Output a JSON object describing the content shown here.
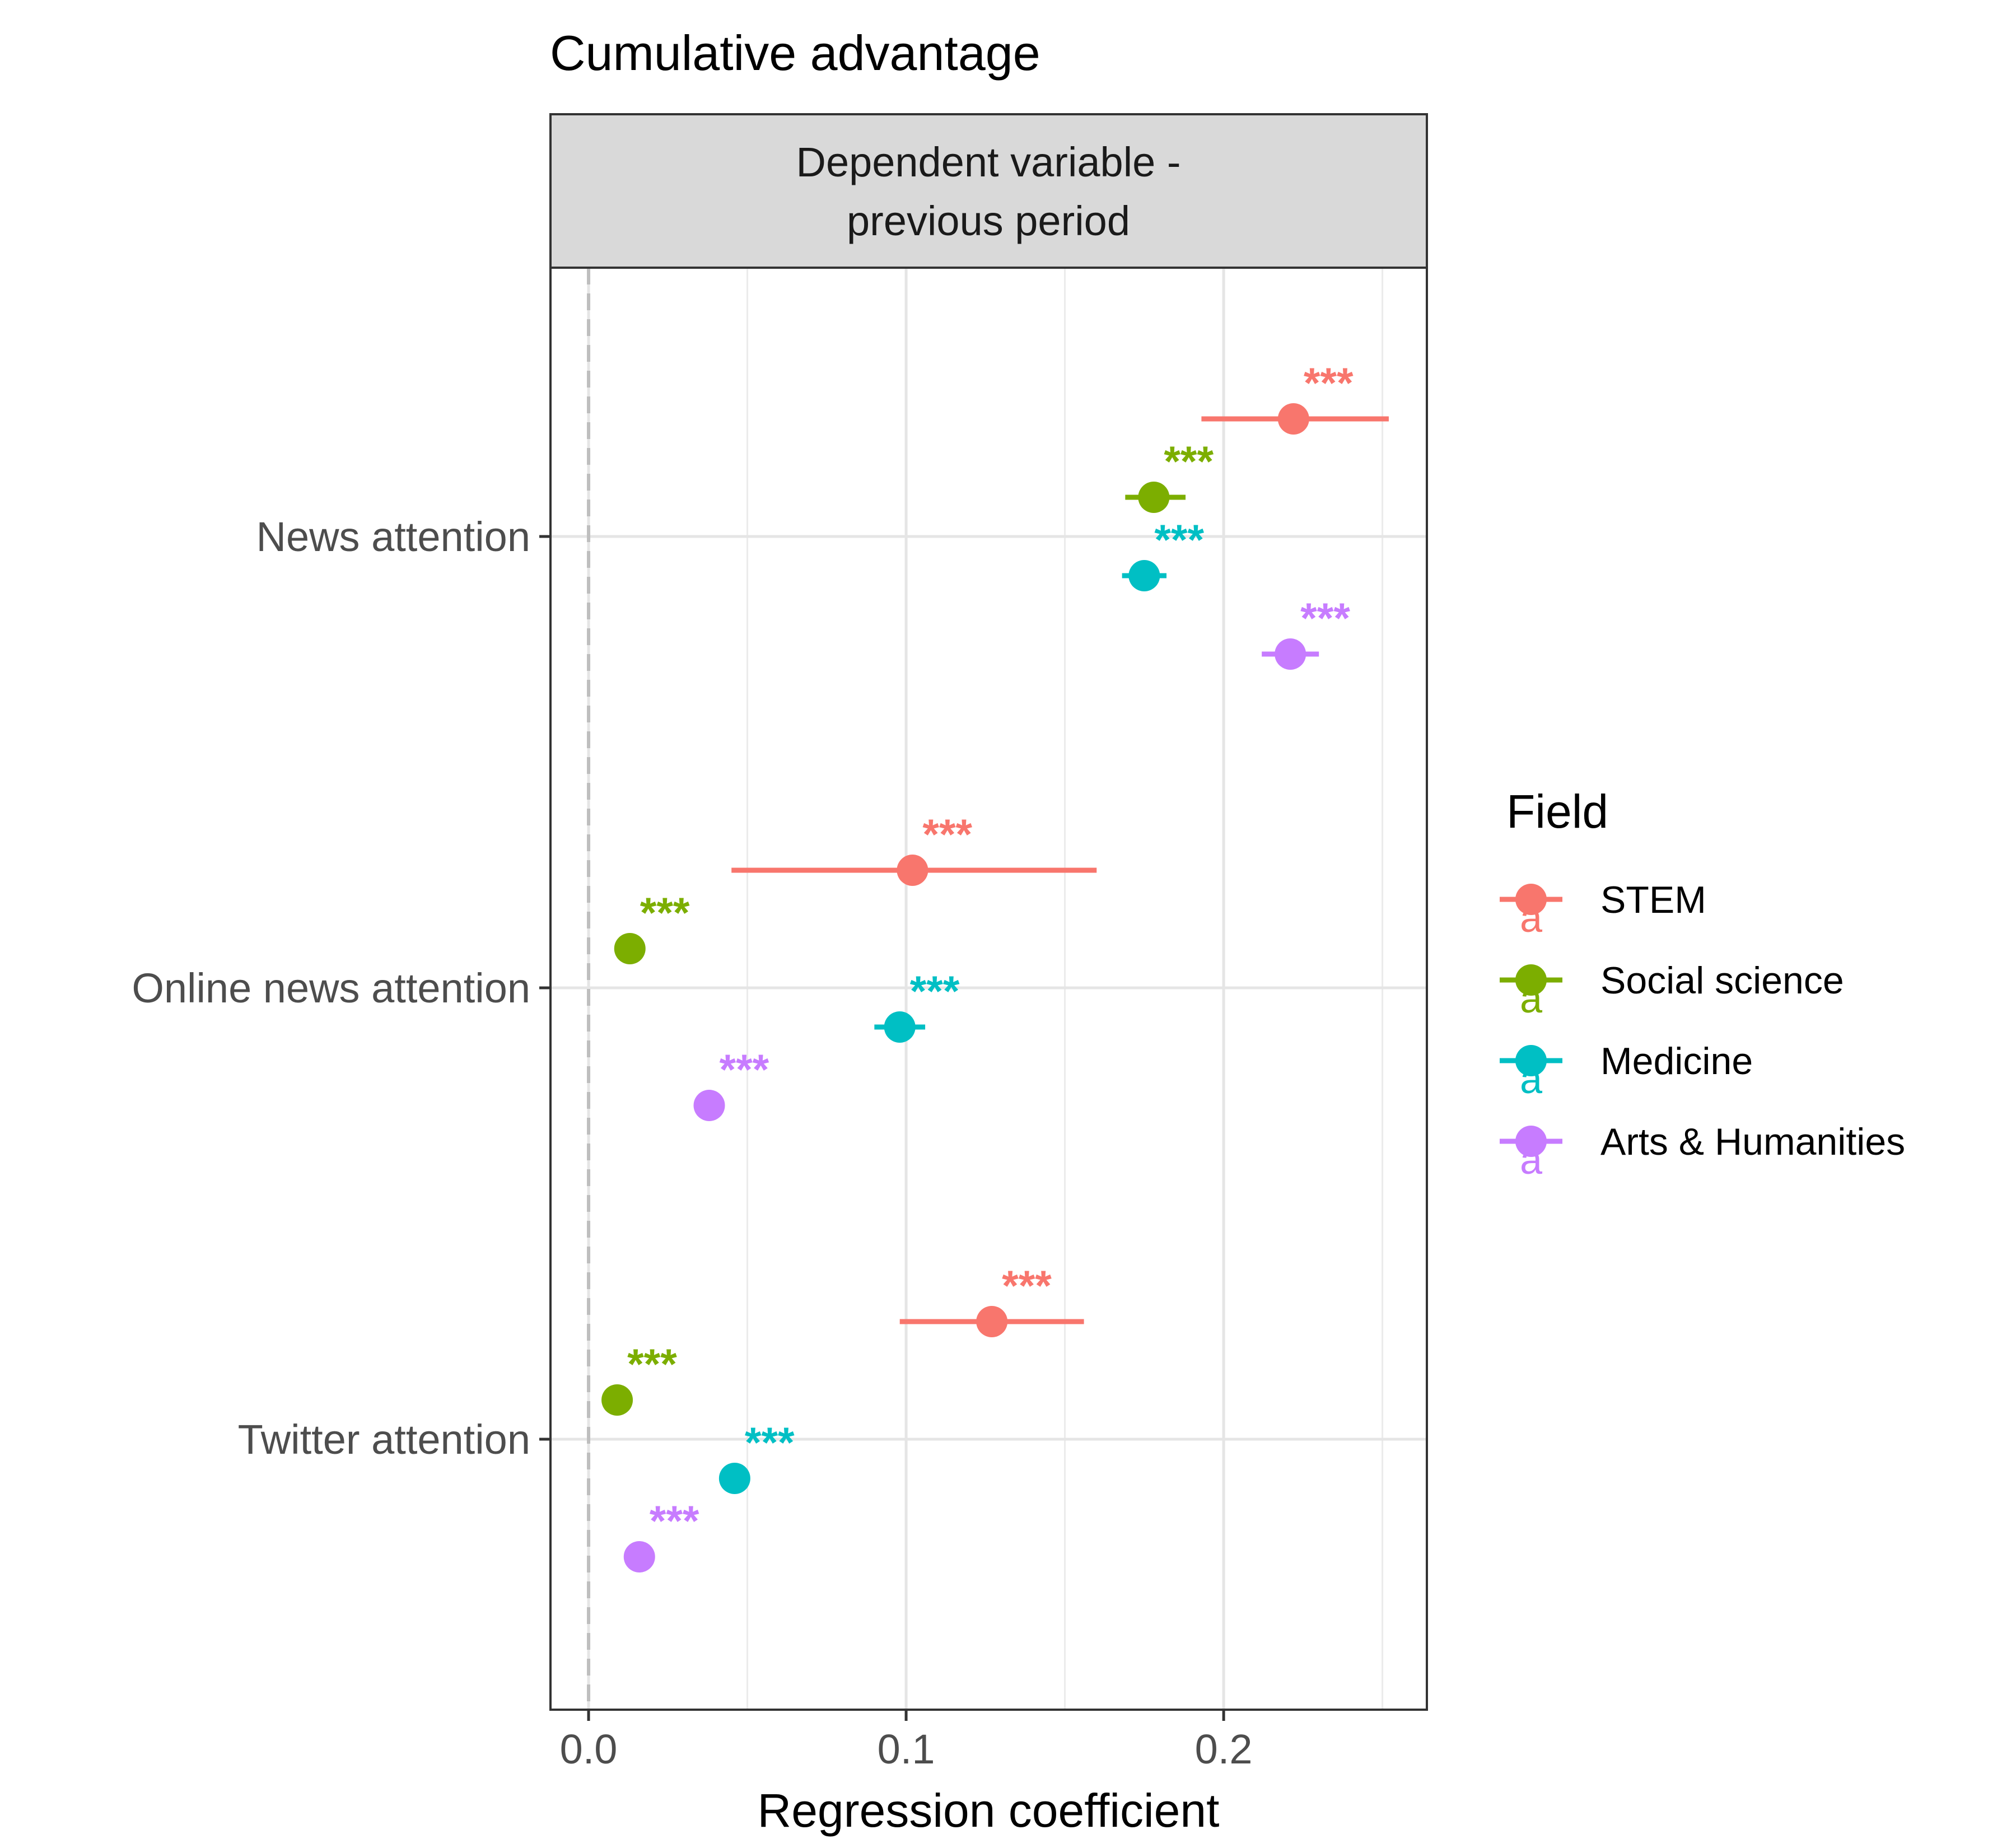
{
  "chart_data": {
    "type": "scatter",
    "title": "Cumulative advantage",
    "facet_label_line1": "Dependent variable -",
    "facet_label_line2": "previous period",
    "xlabel": "Regression coefficient",
    "ylabel": "",
    "xlim": [
      -0.012,
      0.264
    ],
    "x_ticks": [
      "0.0",
      "0.1",
      "0.2"
    ],
    "x_tick_values": [
      0.0,
      0.1,
      0.2
    ],
    "x_minor_values": [
      0.05,
      0.15,
      0.25
    ],
    "reference_line": 0,
    "categories": [
      "News attention",
      "Online news attention",
      "Twitter attention"
    ],
    "grid": true,
    "legend": {
      "title": "Field",
      "position": "right"
    },
    "series": [
      {
        "name": "STEM",
        "color": "#F8766D",
        "estimates": [
          0.222,
          0.102,
          0.127
        ],
        "ci_low": [
          0.193,
          0.045,
          0.098
        ],
        "ci_high": [
          0.252,
          0.16,
          0.156
        ],
        "significance": [
          "***",
          "***",
          "***"
        ]
      },
      {
        "name": "Social science",
        "color": "#7CAE00",
        "estimates": [
          0.178,
          0.013,
          0.009
        ],
        "ci_low": [
          0.169,
          0.011,
          0.007
        ],
        "ci_high": [
          0.188,
          0.015,
          0.011
        ],
        "significance": [
          "***",
          "***",
          "***"
        ]
      },
      {
        "name": "Medicine",
        "color": "#00BFC4",
        "estimates": [
          0.175,
          0.098,
          0.046
        ],
        "ci_low": [
          0.168,
          0.09,
          0.044
        ],
        "ci_high": [
          0.182,
          0.106,
          0.048
        ],
        "significance": [
          "***",
          "***",
          "***"
        ]
      },
      {
        "name": "Arts & Humanities",
        "color": "#C77CFF",
        "estimates": [
          0.221,
          0.038,
          0.016
        ],
        "ci_low": [
          0.212,
          0.036,
          0.014
        ],
        "ci_high": [
          0.23,
          0.04,
          0.018
        ],
        "significance": [
          "***",
          "***",
          "***"
        ]
      }
    ]
  }
}
